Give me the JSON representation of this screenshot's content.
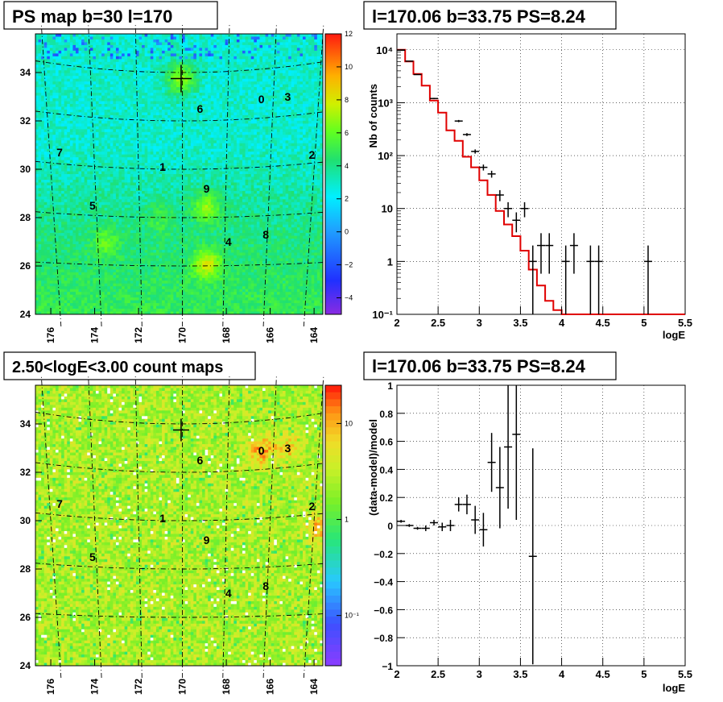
{
  "panels": {
    "tl": {
      "title": "PS map b=30 l=170"
    },
    "tr": {
      "title": "l=170.06 b=33.75 PS=8.24"
    },
    "bl": {
      "title": "2.50<logE<3.00 count maps"
    },
    "br": {
      "title": "l=170.06 b=33.75 PS=8.24"
    }
  },
  "sources": [
    {
      "id": "0",
      "l": 166.4,
      "b": 32.9
    },
    {
      "id": "1",
      "l": 170.9,
      "b": 30.1
    },
    {
      "id": "2",
      "l": 164.1,
      "b": 30.6
    },
    {
      "id": "3",
      "l": 165.2,
      "b": 33.0
    },
    {
      "id": "4",
      "l": 167.9,
      "b": 27.0
    },
    {
      "id": "5",
      "l": 174.1,
      "b": 28.5
    },
    {
      "id": "6",
      "l": 169.2,
      "b": 32.5
    },
    {
      "id": "7",
      "l": 175.6,
      "b": 30.7
    },
    {
      "id": "8",
      "l": 166.2,
      "b": 27.3
    },
    {
      "id": "9",
      "l": 168.9,
      "b": 29.2
    }
  ],
  "map_axes": {
    "x_ticks": [
      "176",
      "174",
      "172",
      "170",
      "168",
      "166",
      "164"
    ],
    "y_ticks": [
      "24",
      "26",
      "28",
      "30",
      "32",
      "34"
    ]
  },
  "ps_colorbar_ticks": [
    "12",
    "10",
    "8",
    "6",
    "4",
    "2",
    "0",
    "−2",
    "−4"
  ],
  "count_colorbar_ticks": [
    "10",
    "1",
    "10⁻¹"
  ],
  "chart_data": [
    {
      "type": "heatmap",
      "title": "PS map b=30 l=170",
      "xlabel": "",
      "ylabel": "",
      "xlim": [
        176.7,
        163.6
      ],
      "ylim": [
        24,
        35.6
      ],
      "zlim": [
        -5,
        12
      ],
      "marker": {
        "l": 170.06,
        "b": 33.75
      }
    },
    {
      "type": "line",
      "title": "l=170.06 b=33.75 PS=8.24",
      "xlabel": "logE",
      "ylabel": "Nb of counts",
      "xlim": [
        2,
        5.5
      ],
      "ylim": [
        0.1,
        20000
      ],
      "yscale": "log",
      "x_ticks": [
        "2",
        "2.5",
        "3",
        "3.5",
        "4",
        "4.5",
        "5",
        "5.5"
      ],
      "y_ticks": [
        "10⁻¹",
        "1",
        "10",
        "10²",
        "10³",
        "10⁴"
      ],
      "model": {
        "color": "#e00000",
        "edges": [
          2.0,
          2.1,
          2.2,
          2.3,
          2.4,
          2.5,
          2.6,
          2.7,
          2.8,
          2.9,
          3.0,
          3.1,
          3.2,
          3.3,
          3.4,
          3.5,
          3.6,
          3.7,
          3.8,
          3.9,
          4.0,
          5.5
        ],
        "values": [
          10000,
          6000,
          3500,
          2100,
          1100,
          650,
          300,
          190,
          95,
          60,
          34,
          18,
          9,
          5,
          3,
          1.6,
          0.7,
          0.35,
          0.18,
          0.12,
          0.1
        ]
      },
      "data": [
        {
          "x": 2.05,
          "y": 9800
        },
        {
          "x": 2.15,
          "y": 6100
        },
        {
          "x": 2.25,
          "y": 3400
        },
        {
          "x": 2.45,
          "y": 1200
        },
        {
          "x": 2.75,
          "y": 450
        },
        {
          "x": 2.85,
          "y": 250
        },
        {
          "x": 2.95,
          "y": 120
        },
        {
          "x": 3.05,
          "y": 60
        },
        {
          "x": 3.15,
          "y": 45
        },
        {
          "x": 3.25,
          "y": 18
        },
        {
          "x": 3.35,
          "y": 10
        },
        {
          "x": 3.45,
          "y": 6
        },
        {
          "x": 3.55,
          "y": 10
        },
        {
          "x": 3.65,
          "y": 1
        },
        {
          "x": 3.75,
          "y": 2
        },
        {
          "x": 3.85,
          "y": 2
        },
        {
          "x": 4.05,
          "y": 1
        },
        {
          "x": 4.15,
          "y": 2
        },
        {
          "x": 4.35,
          "y": 1
        },
        {
          "x": 4.45,
          "y": 1
        },
        {
          "x": 5.05,
          "y": 1
        }
      ]
    },
    {
      "type": "heatmap",
      "title": "2.50<logE<3.00 count maps",
      "xlabel": "",
      "ylabel": "",
      "xlim": [
        176.7,
        163.6
      ],
      "ylim": [
        24,
        35.6
      ],
      "zscale": "log",
      "zlim": [
        0.03,
        25
      ],
      "marker": {
        "l": 170.06,
        "b": 33.75
      }
    },
    {
      "type": "scatter",
      "title": "l=170.06 b=33.75 PS=8.24",
      "xlabel": "logE",
      "ylabel": "(data-model)/model",
      "xlim": [
        2,
        5.5
      ],
      "ylim": [
        -1,
        1
      ],
      "x_ticks": [
        "2",
        "2.5",
        "3",
        "3.5",
        "4",
        "4.5",
        "5",
        "5.5"
      ],
      "y_ticks": [
        "−1",
        "−0.8",
        "−0.6",
        "−0.4",
        "−0.2",
        "0",
        "0.2",
        "0.4",
        "0.6",
        "0.8",
        "1"
      ],
      "points": [
        {
          "x": 2.05,
          "y": 0.03,
          "err": 0.01
        },
        {
          "x": 2.15,
          "y": 0.0,
          "err": 0.01
        },
        {
          "x": 2.25,
          "y": -0.02,
          "err": 0.01
        },
        {
          "x": 2.35,
          "y": -0.02,
          "err": 0.02
        },
        {
          "x": 2.45,
          "y": 0.02,
          "err": 0.02
        },
        {
          "x": 2.55,
          "y": -0.01,
          "err": 0.03
        },
        {
          "x": 2.65,
          "y": 0.0,
          "err": 0.04
        },
        {
          "x": 2.75,
          "y": 0.15,
          "err": 0.05
        },
        {
          "x": 2.85,
          "y": 0.15,
          "err": 0.07
        },
        {
          "x": 2.95,
          "y": 0.04,
          "err": 0.1
        },
        {
          "x": 3.05,
          "y": -0.03,
          "err": 0.12
        },
        {
          "x": 3.15,
          "y": 0.45,
          "err": 0.21
        },
        {
          "x": 3.25,
          "y": 0.27,
          "err": 0.29
        },
        {
          "x": 3.35,
          "y": 0.56,
          "err": 0.44
        },
        {
          "x": 3.45,
          "y": 0.65,
          "err": 0.61
        },
        {
          "x": 3.65,
          "y": -0.22,
          "err": 0.77
        }
      ]
    }
  ]
}
